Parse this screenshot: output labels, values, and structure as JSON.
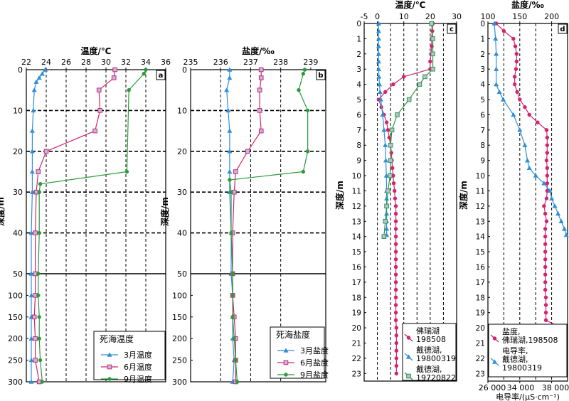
{
  "chart_data": [
    {
      "panel": "a",
      "type": "line",
      "xlabel": "温度/℃",
      "ylabel": "深度/m",
      "xlim": [
        22,
        36
      ],
      "xticks": [
        "22",
        "24",
        "26",
        "28",
        "30",
        "32",
        "34",
        "36"
      ],
      "yticks_upper": [
        "0",
        "10",
        "20",
        "30",
        "40",
        "50"
      ],
      "yticks_lower": [
        "100",
        "150",
        "200",
        "250",
        "300"
      ],
      "legend_title": "死海温度",
      "colors": [
        "#2e8fd8",
        "#d4226e",
        "#2a9a3a"
      ],
      "series": [
        {
          "name": "3月温度",
          "marker": "triangle",
          "depth": [
            0,
            1,
            2,
            3,
            5,
            10,
            15,
            20,
            25,
            30,
            40,
            50,
            100,
            150,
            200,
            250,
            300
          ],
          "values": [
            23.9,
            23.6,
            23.3,
            23.0,
            22.8,
            22.7,
            22.6,
            22.6,
            22.6,
            22.6,
            22.5,
            22.5,
            22.5,
            22.5,
            22.5,
            22.5,
            22.5
          ]
        },
        {
          "name": "6月温度",
          "marker": "square",
          "depth": [
            0,
            2,
            5,
            10,
            15,
            20,
            25,
            30,
            40,
            50,
            100,
            150,
            200,
            250,
            300
          ],
          "values": [
            30.9,
            30.8,
            29.3,
            29.4,
            28.9,
            24.0,
            23.2,
            23.0,
            22.9,
            22.9,
            22.9,
            22.8,
            22.9,
            22.9,
            23.3
          ]
        },
        {
          "name": "9月温度",
          "marker": "circle",
          "depth": [
            0,
            1,
            5,
            25,
            28,
            30,
            40,
            50,
            100,
            150,
            200,
            250,
            300
          ],
          "values": [
            34.0,
            33.8,
            32.3,
            32.1,
            23.4,
            23.3,
            23.3,
            23.2,
            23.2,
            23.3,
            23.3,
            23.4,
            23.6
          ]
        }
      ]
    },
    {
      "panel": "b",
      "type": "line",
      "xlabel": "盐度/‰",
      "ylabel": "深度/m",
      "xlim": [
        235,
        239.5
      ],
      "xticks": [
        "235",
        "236",
        "237",
        "238",
        "239"
      ],
      "yticks_upper": [
        "0",
        "10",
        "20",
        "30",
        "40",
        "50"
      ],
      "yticks_lower": [
        "100",
        "150",
        "200",
        "250",
        "300"
      ],
      "legend_title": "死海盐度",
      "colors": [
        "#2e8fd8",
        "#d4226e",
        "#2a9a3a"
      ],
      "series": [
        {
          "name": "3月盐度",
          "marker": "triangle",
          "depth": [
            0,
            2,
            5,
            10,
            15,
            20,
            25,
            30,
            40,
            50,
            100,
            150,
            200,
            250,
            300
          ],
          "values": [
            236.3,
            236.3,
            236.2,
            236.25,
            236.3,
            236.3,
            236.3,
            236.3,
            236.35,
            236.35,
            236.4,
            236.4,
            236.4,
            236.45,
            236.4
          ]
        },
        {
          "name": "6月盐度",
          "marker": "square",
          "depth": [
            0,
            2,
            5,
            10,
            15,
            20,
            25,
            30,
            40,
            50,
            100,
            150,
            200,
            250,
            300
          ],
          "values": [
            237.35,
            237.35,
            237.3,
            237.3,
            237.35,
            236.9,
            236.5,
            236.45,
            236.4,
            236.4,
            236.4,
            236.45,
            236.5,
            236.5,
            236.5
          ]
        },
        {
          "name": "9月盐度",
          "marker": "circle",
          "depth": [
            0,
            1,
            5,
            10,
            20,
            25,
            27,
            30,
            40,
            50,
            100,
            150,
            200,
            250,
            300
          ],
          "values": [
            238.8,
            238.75,
            238.6,
            238.9,
            238.9,
            238.75,
            236.3,
            236.35,
            236.35,
            236.4,
            236.4,
            236.4,
            236.45,
            236.5,
            236.55
          ]
        }
      ]
    },
    {
      "panel": "c",
      "type": "line",
      "xlabel": "温度/℃",
      "ylabel": "深度/m",
      "xlim": [
        -5,
        30
      ],
      "xticks": [
        "-5",
        "0",
        "10",
        "20",
        "30"
      ],
      "ylim": [
        0,
        23.5
      ],
      "yticks": [
        "0",
        "1",
        "2",
        "3",
        "4",
        "5",
        "6",
        "7",
        "8",
        "9",
        "10",
        "11",
        "12",
        "13",
        "14",
        "15",
        "16",
        "17",
        "18",
        "19",
        "20",
        "21",
        "22",
        "23"
      ],
      "colors": [
        "#d4226e",
        "#2e8fd8",
        "#2a9a3a"
      ],
      "series": [
        {
          "name": "佛瑞湖",
          "label_lines": [
            "佛瑞湖",
            "198508"
          ],
          "marker": "circle",
          "depth": [
            0,
            0.5,
            1,
            1.5,
            2,
            2.5,
            3,
            3.5,
            4,
            4.5,
            5,
            5.5,
            6,
            6.5,
            7,
            7.5,
            8,
            8.5,
            9,
            9.5,
            10,
            10.5,
            11,
            11.5,
            12,
            12.5,
            13,
            13.5,
            14,
            14.5,
            15,
            15.5,
            16,
            16.5,
            17,
            17.5,
            18,
            18.5,
            19,
            19.5,
            20,
            20.5,
            21,
            21.5,
            22,
            22.5,
            23
          ],
          "values": [
            21,
            20.8,
            20.5,
            20.6,
            20.3,
            20.0,
            20.0,
            10.0,
            6.0,
            3.0,
            0.5,
            1.5,
            2.5,
            3.5,
            4.0,
            4.5,
            5.0,
            5.3,
            5.5,
            5.7,
            6.0,
            6.2,
            6.5,
            6.7,
            7.0,
            7.0,
            7.0,
            7.0,
            7.0,
            7.0,
            7.0,
            7.0,
            7.0,
            7.0,
            7.0,
            7.0,
            7.0,
            7.0,
            7.0,
            7.0,
            7.2,
            7.2,
            7.2,
            7.2,
            7.2,
            7.2,
            7.2
          ]
        },
        {
          "name": "戴德湖,19800319",
          "label_lines": [
            "戴德湖,",
            "19800319"
          ],
          "marker": "triangle",
          "depth": [
            0,
            0.5,
            1,
            1.5,
            2,
            2.5,
            3,
            3.5,
            4,
            4.5,
            5,
            6,
            7,
            8,
            9,
            10,
            11,
            11.5,
            12,
            12.5,
            13,
            13.5,
            13.9
          ],
          "values": [
            0.5,
            0.5,
            0.5,
            0.5,
            0.5,
            0.5,
            0.5,
            0.6,
            0.8,
            1.0,
            1.3,
            2.0,
            2.5,
            3.0,
            3.2,
            3.4,
            3.5,
            3.5,
            3.5,
            3.5,
            3.5,
            3.5,
            3.5
          ]
        },
        {
          "name": "戴德湖,19720822",
          "label_lines": [
            "戴德湖,",
            "19720822"
          ],
          "marker": "square",
          "depth": [
            0,
            1,
            2,
            3,
            3.5,
            4,
            5,
            6,
            7,
            8,
            9,
            10,
            11,
            12,
            13,
            14
          ],
          "values": [
            20.5,
            21,
            21,
            21,
            18,
            16,
            12,
            7.5,
            5.5,
            5.0,
            5.0,
            4.8,
            4.0,
            3.5,
            3.0,
            2.5
          ]
        }
      ]
    },
    {
      "panel": "d",
      "type": "line",
      "xlabel": "盐度/‰",
      "x2label": "电导率/(μS·cm⁻¹)",
      "ylabel": "深度/m",
      "xlim": [
        100,
        225
      ],
      "xticks": [
        "100",
        "150",
        "200"
      ],
      "x2ticks": [
        "26 000",
        "34 000",
        "38 000"
      ],
      "ylim": [
        0,
        23.5
      ],
      "yticks": [
        "0",
        "1",
        "2",
        "3",
        "4",
        "5",
        "6",
        "7",
        "8",
        "9",
        "10",
        "11",
        "12",
        "13",
        "14",
        "15",
        "16",
        "17",
        "18",
        "19",
        "20",
        "21",
        "22",
        "23"
      ],
      "colors": [
        "#d4226e",
        "#2e8fd8"
      ],
      "series": [
        {
          "name": "盐度,佛瑞湖,198508",
          "label_lines": [
            "盐度,",
            "佛瑞湖,198508"
          ],
          "marker": "circle",
          "depth": [
            0,
            0.5,
            1,
            1.5,
            2,
            2.5,
            3,
            3.5,
            4,
            4.5,
            5,
            5.5,
            6,
            6.5,
            7,
            7.5,
            8,
            8.5,
            9,
            9.5,
            10,
            10.5,
            11,
            11.5,
            12,
            12.5,
            13,
            13.5,
            14,
            14.5,
            15,
            15.5,
            16,
            16.5,
            17,
            17.5,
            18,
            18.5,
            19,
            19.5,
            20,
            20.5,
            21,
            21.5,
            22,
            22.5,
            23
          ],
          "values": [
            113,
            125,
            140,
            143,
            145,
            145,
            144,
            142,
            142,
            146,
            150,
            158,
            165,
            178,
            192,
            193,
            193,
            193,
            192,
            193,
            193,
            193,
            193,
            192,
            188,
            190,
            192,
            190,
            190,
            190,
            190,
            190,
            190,
            190,
            190,
            190,
            191,
            191,
            191,
            191,
            215,
            213,
            212,
            212,
            212,
            210,
            210
          ]
        },
        {
          "name": "电导率,戴德湖,19800319",
          "label_lines": [
            "电导率,",
            "戴德湖,",
            "19800319"
          ],
          "marker": "triangle",
          "depth": [
            0,
            1,
            2,
            3,
            4,
            4.5,
            5,
            6,
            7,
            8,
            9,
            9.5,
            10,
            10.5,
            11,
            11.5,
            12,
            12.5,
            13,
            13.5,
            13.9
          ],
          "values": [
            110,
            112,
            113,
            113,
            113,
            118,
            124,
            140,
            150,
            158,
            162,
            165,
            175,
            188,
            197,
            200,
            205,
            210,
            215,
            220,
            223
          ]
        }
      ]
    }
  ]
}
